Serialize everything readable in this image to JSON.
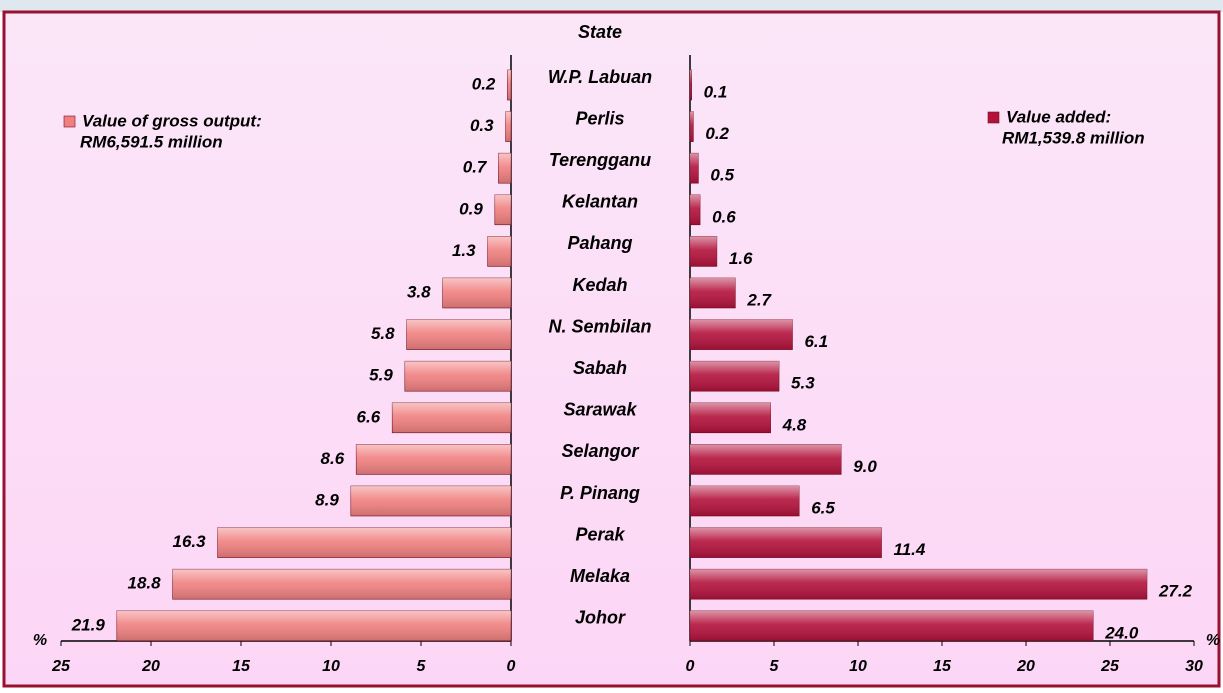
{
  "chart_data": {
    "type": "butterfly",
    "title": "State",
    "categories": [
      "W.P. Labuan",
      "Perlis",
      "Terengganu",
      "Kelantan",
      "Pahang",
      "Kedah",
      "N. Sembilan",
      "Sabah",
      "Sarawak",
      "Selangor",
      "P. Pinang",
      "Perak",
      "Melaka",
      "Johor"
    ],
    "series": [
      {
        "name": "Value of gross output:",
        "total_label": "RM6,591.5 million",
        "color": "#f08080",
        "side": "left",
        "values": [
          0.2,
          0.3,
          0.7,
          0.9,
          1.3,
          3.8,
          5.8,
          5.9,
          6.6,
          8.6,
          8.9,
          16.3,
          18.8,
          21.9
        ],
        "value_labels": [
          "0.2",
          "0.3",
          "0.7",
          "0.9",
          "1.3",
          "3.8",
          "5.8",
          "5.9",
          "6.6",
          "8.6",
          "8.9",
          "16.3",
          "18.8",
          "21.9"
        ],
        "xlim": [
          0,
          25
        ],
        "xticks": [
          0,
          5,
          10,
          15,
          20,
          25
        ],
        "x_label": "%"
      },
      {
        "name": "Value added:",
        "total_label": "RM1,539.8 million",
        "color": "#b3123c",
        "side": "right",
        "values": [
          0.1,
          0.2,
          0.5,
          0.6,
          1.6,
          2.7,
          6.1,
          5.3,
          4.8,
          9.0,
          6.5,
          11.4,
          27.2,
          24.0
        ],
        "value_labels": [
          "0.1",
          "0.2",
          "0.5",
          "0.6",
          "1.6",
          "2.7",
          "6.1",
          "5.3",
          "4.8",
          "9.0",
          "6.5",
          "11.4",
          "27.2",
          "24.0"
        ],
        "xlim": [
          0,
          30
        ],
        "xticks": [
          0,
          5,
          10,
          15,
          20,
          25,
          30
        ],
        "x_label": "%"
      }
    ]
  }
}
